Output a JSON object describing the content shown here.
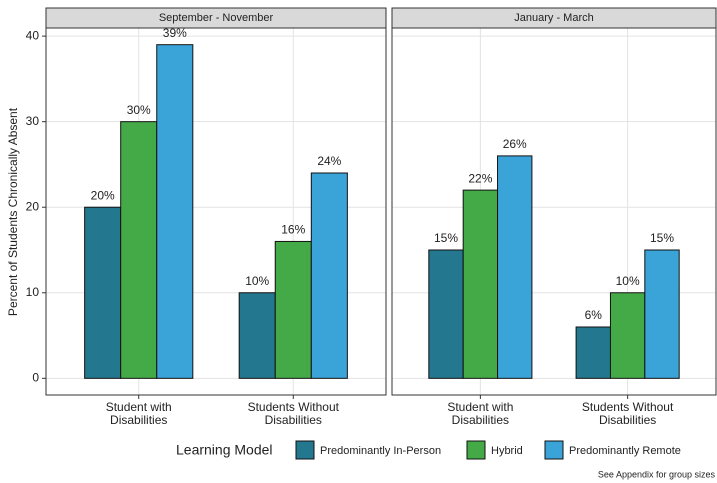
{
  "chart_data": {
    "type": "bar",
    "ylabel": "Percent of Students Chronically Absent",
    "legend_title": "Learning Model",
    "note": "See Appendix for group sizes",
    "categories": [
      "Student with\nDisabilities",
      "Students Without\nDisabilities"
    ],
    "series": [
      {
        "name": "Predominantly In-Person",
        "color": "#23788f"
      },
      {
        "name": "Hybrid",
        "color": "#44aa47"
      },
      {
        "name": "Predominantly Remote",
        "color": "#3aa4d8"
      }
    ],
    "facets": [
      {
        "title": "September - November",
        "series": [
          {
            "values": [
              20,
              10
            ],
            "value_labels": [
              "20%",
              "10%"
            ]
          },
          {
            "values": [
              30,
              16
            ],
            "value_labels": [
              "30%",
              "16%"
            ]
          },
          {
            "values": [
              39,
              24
            ],
            "value_labels": [
              "39%",
              "24%"
            ]
          }
        ]
      },
      {
        "title": "January - March",
        "series": [
          {
            "values": [
              15,
              6
            ],
            "value_labels": [
              "15%",
              "6%"
            ]
          },
          {
            "values": [
              22,
              10
            ],
            "value_labels": [
              "22%",
              "10%"
            ]
          },
          {
            "values": [
              26,
              15
            ],
            "value_labels": [
              "26%",
              "15%"
            ]
          }
        ]
      }
    ],
    "ylim": [
      -1.95,
      40.95
    ],
    "yticks": [
      0,
      10,
      20,
      30,
      40
    ],
    "grid": true
  }
}
